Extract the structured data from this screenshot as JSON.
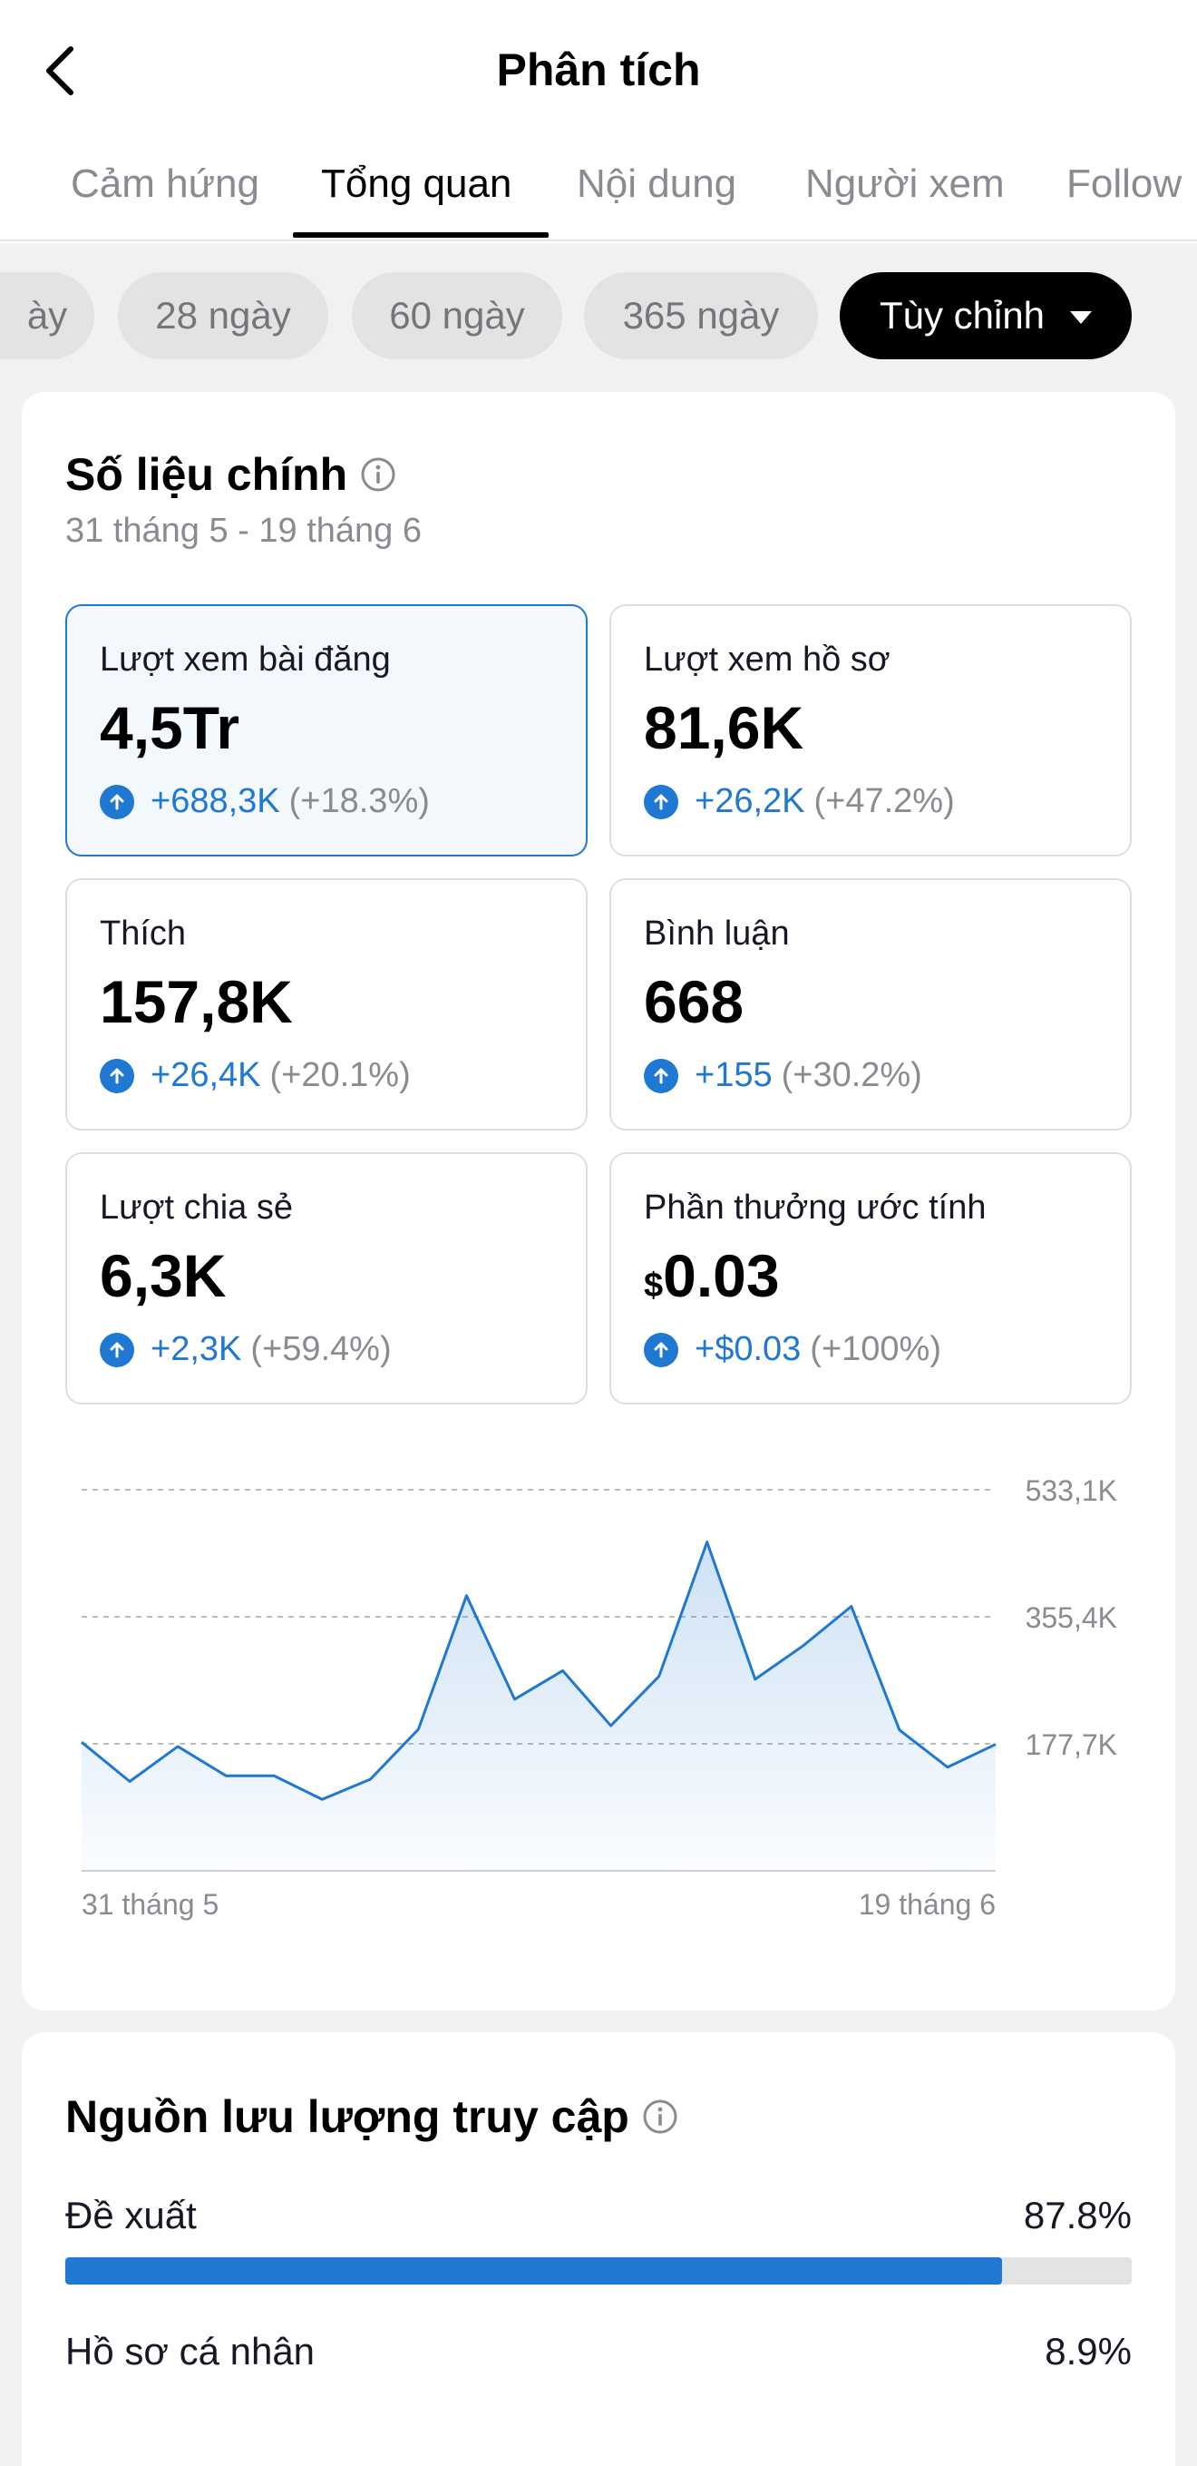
{
  "header": {
    "title": "Phân tích"
  },
  "tabs": [
    {
      "label": "Cảm hứng"
    },
    {
      "label": "Tổng quan"
    },
    {
      "label": "Nội dung"
    },
    {
      "label": "Người xem"
    },
    {
      "label": "Follow"
    }
  ],
  "chips": [
    {
      "label": "ày"
    },
    {
      "label": "28 ngày"
    },
    {
      "label": "60 ngày"
    },
    {
      "label": "365 ngày"
    },
    {
      "label": "Tùy chỉnh"
    }
  ],
  "key_metrics": {
    "title": "Số liệu chính",
    "date_range": "31 tháng 5 - 19 tháng 6",
    "items": [
      {
        "label": "Lượt xem bài đăng",
        "value": "4,5Tr",
        "delta": "+688,3K",
        "pct": "(+18.3%)"
      },
      {
        "label": "Lượt xem hồ sơ",
        "value": "81,6K",
        "delta": "+26,2K",
        "pct": "(+47.2%)"
      },
      {
        "label": "Thích",
        "value": "157,8K",
        "delta": "+26,4K",
        "pct": "(+20.1%)"
      },
      {
        "label": "Bình luận",
        "value": "668",
        "delta": "+155",
        "pct": "(+30.2%)"
      },
      {
        "label": "Lượt chia sẻ",
        "value": "6,3K",
        "delta": "+2,3K",
        "pct": "(+59.4%)"
      },
      {
        "label": "Phần thưởng ước tính",
        "currency": "$",
        "value": "0.03",
        "delta": "+$0.03",
        "pct": "(+100%)"
      }
    ]
  },
  "chart_data": {
    "type": "area",
    "x_labels": [
      "31 tháng 5",
      "19 tháng 6"
    ],
    "y_ticks": [
      {
        "value": 533100,
        "label": "533,1K"
      },
      {
        "value": 355400,
        "label": "355,4K"
      },
      {
        "value": 177700,
        "label": "177,7K"
      }
    ],
    "ylim": [
      0,
      533100
    ],
    "values": [
      180000,
      125000,
      174000,
      133000,
      133000,
      100000,
      128000,
      198000,
      385000,
      240000,
      280000,
      203000,
      272000,
      460000,
      268000,
      315000,
      370000,
      197000,
      145000,
      177000
    ],
    "line_color": "#1f78d1",
    "grid": "dashed"
  },
  "traffic": {
    "title": "Nguồn lưu lượng truy cập",
    "items": [
      {
        "label": "Đề xuất",
        "value": "87.8%",
        "fraction": 0.878
      },
      {
        "label": "Hồ sơ cá nhân",
        "value": "8.9%",
        "fraction": 0.089
      }
    ]
  }
}
